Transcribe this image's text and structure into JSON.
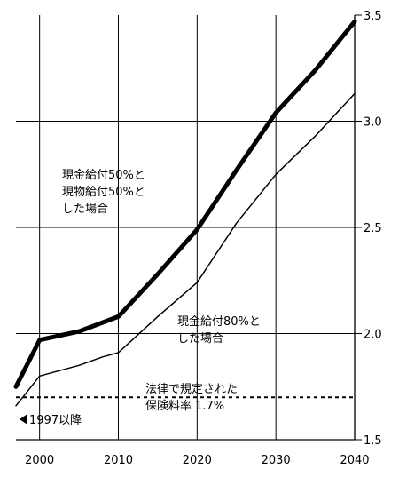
{
  "chart_data": {
    "type": "line",
    "title": "",
    "xlabel": "",
    "ylabel": "",
    "xlim": [
      1997,
      2040
    ],
    "ylim": [
      1.5,
      3.5
    ],
    "x_ticks": [
      2000,
      2010,
      2020,
      2030,
      2040
    ],
    "y_ticks": [
      1.5,
      2.0,
      2.5,
      3.0,
      3.5
    ],
    "x_tick_labels": [
      "2000",
      "2010",
      "2020",
      "2030",
      "2040"
    ],
    "y_tick_labels": [
      "1.5",
      "2.0",
      "2.5",
      "3.0",
      "3.5"
    ],
    "y_axis_side": "right",
    "grid": "vertical lines at each decade and horizontal lines at each 0.5",
    "series": [
      {
        "label_lines": [
          "現金給付50%と",
          "現物給付50%と",
          "した場合"
        ],
        "style": "thick",
        "x": [
          1997,
          2000,
          2005,
          2010,
          2015,
          2020,
          2025,
          2030,
          2035,
          2040
        ],
        "y": [
          1.75,
          1.97,
          2.01,
          2.08,
          2.28,
          2.49,
          2.77,
          3.04,
          3.24,
          3.47
        ]
      },
      {
        "label_lines": [
          "現金給付80%と",
          "した場合"
        ],
        "style": "thin",
        "x": [
          1997,
          2000,
          2005,
          2008,
          2010,
          2015,
          2020,
          2025,
          2030,
          2035,
          2040
        ],
        "y": [
          1.66,
          1.8,
          1.85,
          1.89,
          1.91,
          2.08,
          2.24,
          2.52,
          2.75,
          2.93,
          3.13
        ]
      }
    ],
    "reference_line": {
      "value": 1.7,
      "label_lines": [
        "法律で規定された",
        "保険料率 1.7%"
      ],
      "style": "dashed"
    },
    "start_annotation": "1997以降"
  }
}
